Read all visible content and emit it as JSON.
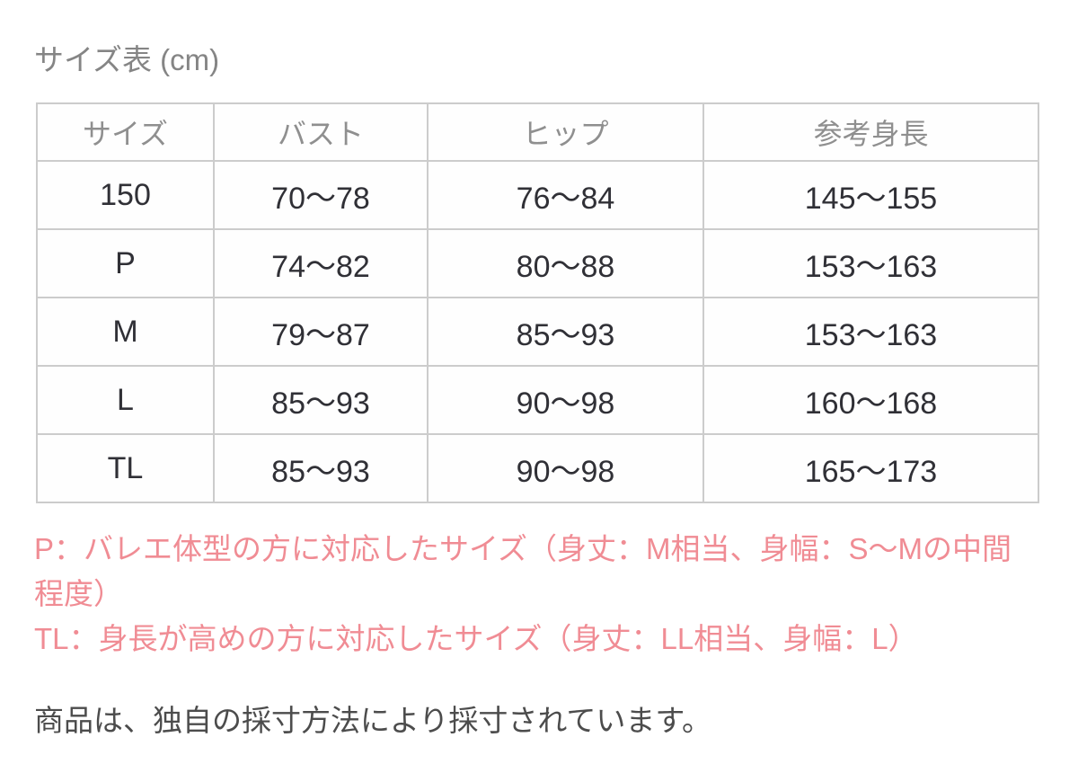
{
  "title": "サイズ表 (cm)",
  "size_table": {
    "headers": [
      "サイズ",
      "バスト",
      "ヒップ",
      "参考身長"
    ],
    "rows": [
      [
        "150",
        "70～78",
        "76～84",
        "145～155"
      ],
      [
        "P",
        "74～82",
        "80～88",
        "153～163"
      ],
      [
        "M",
        "79～87",
        "85～93",
        "153～163"
      ],
      [
        "L",
        "85～93",
        "90～98",
        "160～168"
      ],
      [
        "TL",
        "85～93",
        "90～98",
        "165～173"
      ]
    ]
  },
  "notes": {
    "p_line1": "P：バレエ体型の方に対応したサイズ（身丈：M相当、身幅：S～Mの中間",
    "p_line2": "程度）",
    "tl_line": "TL：身長が高めの方に対応したサイズ（身丈：LL相当、身幅：L）"
  },
  "footer_note": "商品は、独自の採寸方法により採寸されています。",
  "colors": {
    "accent_pink": "#f08c94",
    "table_border": "#cccccc",
    "header_text": "#8f8f8f",
    "cell_text": "#303036",
    "title_text": "#858585",
    "footer_text": "#4c4c4c",
    "background": "#ffffff"
  }
}
